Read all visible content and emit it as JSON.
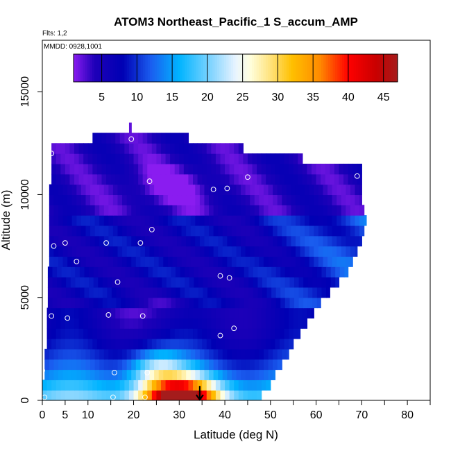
{
  "chart_data": {
    "type": "heatmap",
    "title": "ATOM3 Northeast_Pacific_1 S_accum_AMP",
    "flights_label": "Flts: 1,2",
    "dates_label": "MMDD: 0928,1001",
    "xlabel": "Latitude (deg N)",
    "ylabel": "Altitude (m)",
    "xlim": [
      0,
      85
    ],
    "ylim": [
      0,
      17500
    ],
    "x_ticks": [
      0,
      5,
      10,
      20,
      30,
      40,
      50,
      60,
      70,
      80
    ],
    "x_tick_labels": [
      "0",
      "5",
      "10",
      "20",
      "30",
      "40",
      "50",
      "60",
      "70",
      "80"
    ],
    "x_minor_ticks": [
      15,
      25,
      35,
      45,
      55,
      65,
      75,
      85
    ],
    "y_ticks": [
      0,
      5000,
      10000,
      15000
    ],
    "y_tick_labels": [
      "0",
      "5000",
      "10000",
      "15000"
    ],
    "colorbar": {
      "min": 1,
      "max": 47,
      "ticks": [
        5,
        10,
        15,
        20,
        25,
        30,
        35,
        40,
        45
      ],
      "tick_labels": [
        "5",
        "10",
        "15",
        "20",
        "25",
        "30",
        "35",
        "40",
        "45"
      ],
      "stops": [
        {
          "v": 1,
          "c": "#8a1cf0"
        },
        {
          "v": 4,
          "c": "#1e00b8"
        },
        {
          "v": 8,
          "c": "#0000b4"
        },
        {
          "v": 12,
          "c": "#1a5ef0"
        },
        {
          "v": 16,
          "c": "#00b4ff"
        },
        {
          "v": 21,
          "c": "#8fd8ff"
        },
        {
          "v": 24,
          "c": "#e8f4ff"
        },
        {
          "v": 26,
          "c": "#ffffe0"
        },
        {
          "v": 29,
          "c": "#ffe27a"
        },
        {
          "v": 32,
          "c": "#ffc000"
        },
        {
          "v": 36,
          "c": "#ff8a00"
        },
        {
          "v": 40,
          "c": "#ff0000"
        },
        {
          "v": 44,
          "c": "#c80000"
        },
        {
          "v": 47,
          "c": "#a51c1c"
        }
      ]
    },
    "field": {
      "altitude_bins_m": [
        0,
        500,
        1000,
        1500,
        2000,
        2500,
        3000,
        3500,
        4000,
        4500,
        5000,
        5500,
        6000,
        6500,
        7000,
        7500,
        8000,
        8500,
        9000,
        9500,
        10000,
        10500,
        11000,
        11500,
        12000,
        12500,
        13000
      ],
      "lat_extent": [
        [
          0,
          48
        ],
        [
          0,
          50
        ],
        [
          0.5,
          51
        ],
        [
          0.5,
          52.5
        ],
        [
          0.5,
          54
        ],
        [
          1,
          55
        ],
        [
          1,
          56.5
        ],
        [
          1,
          58
        ],
        [
          1,
          59.5
        ],
        [
          1.2,
          61
        ],
        [
          1.2,
          63
        ],
        [
          1.2,
          65
        ],
        [
          1.2,
          67
        ],
        [
          1.5,
          68
        ],
        [
          1.5,
          69
        ],
        [
          1.5,
          70
        ],
        [
          1.5,
          70.5
        ],
        [
          1.5,
          71
        ],
        [
          1.5,
          70.5
        ],
        [
          1.5,
          70
        ],
        [
          1.5,
          70
        ],
        [
          2,
          70
        ],
        [
          2,
          70
        ],
        [
          2,
          57
        ],
        [
          2,
          44
        ],
        [
          11,
          32
        ],
        [
          19,
          19.5
        ]
      ]
    },
    "observations": [
      {
        "lat": 0.5,
        "alt": 150
      },
      {
        "lat": 15.5,
        "alt": 150
      },
      {
        "lat": 22.5,
        "alt": 150
      },
      {
        "lat": 0,
        "alt": 1450
      },
      {
        "lat": 15.8,
        "alt": 1350
      },
      {
        "lat": 23,
        "alt": 1350
      },
      {
        "lat": 39,
        "alt": 3150
      },
      {
        "lat": 42,
        "alt": 3500
      },
      {
        "lat": 2,
        "alt": 4100
      },
      {
        "lat": 5.5,
        "alt": 4000
      },
      {
        "lat": 14.5,
        "alt": 4150
      },
      {
        "lat": 22,
        "alt": 4100
      },
      {
        "lat": 16.5,
        "alt": 5750
      },
      {
        "lat": 39,
        "alt": 6050
      },
      {
        "lat": 41,
        "alt": 5950
      },
      {
        "lat": 71,
        "alt": 6050
      },
      {
        "lat": 7.5,
        "alt": 6750
      },
      {
        "lat": 2.5,
        "alt": 7500
      },
      {
        "lat": 5,
        "alt": 7650
      },
      {
        "lat": 14,
        "alt": 7650
      },
      {
        "lat": 21.5,
        "alt": 7650
      },
      {
        "lat": 24,
        "alt": 8300
      },
      {
        "lat": 23.5,
        "alt": 10650
      },
      {
        "lat": 37.5,
        "alt": 10250
      },
      {
        "lat": 40.5,
        "alt": 10300
      },
      {
        "lat": 45,
        "alt": 10850
      },
      {
        "lat": 69,
        "alt": 10900
      },
      {
        "lat": 2,
        "alt": 12000
      },
      {
        "lat": 19.5,
        "alt": 12700
      }
    ],
    "annotation_arrow": {
      "lat": 34.5,
      "alt_start": 700,
      "alt_end": 0
    }
  }
}
